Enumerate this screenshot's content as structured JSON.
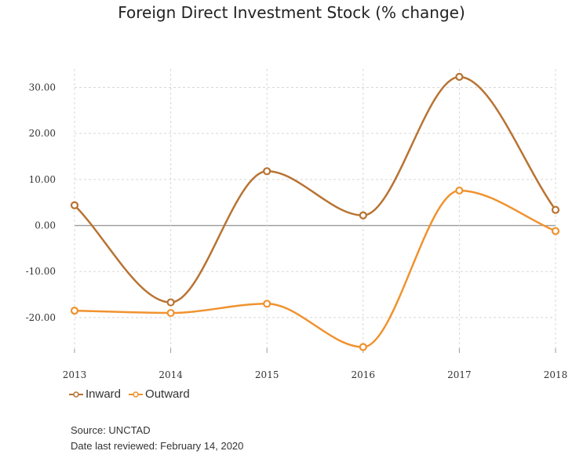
{
  "chart_data": {
    "type": "line",
    "title": "Foreign Direct Investment Stock (% change)",
    "x": [
      "2013",
      "2014",
      "2015",
      "2016",
      "2017",
      "2018"
    ],
    "y_ticks": [
      "30.00",
      "20.00",
      "10.00",
      "0.00",
      "-10.00",
      "-20.00"
    ],
    "ylim": [
      -27,
      34
    ],
    "grid": true,
    "smooth": true,
    "legend_position": "bottom-left",
    "series": [
      {
        "name": "Inward",
        "color": "#B87333",
        "values": [
          4.4,
          -16.7,
          11.8,
          2.2,
          32.3,
          3.4
        ]
      },
      {
        "name": "Outward",
        "color": "#F0922E",
        "values": [
          -18.5,
          -19.0,
          -17.0,
          -26.4,
          7.6,
          -1.2
        ]
      }
    ]
  },
  "footer": {
    "source": "Source: UNCTAD",
    "reviewed": "Date last reviewed: February 14, 2020"
  }
}
